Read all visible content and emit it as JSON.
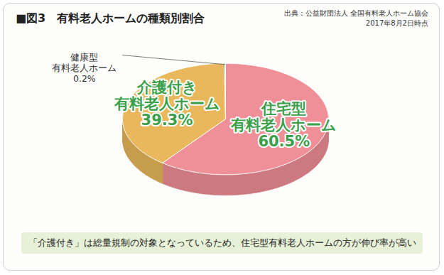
{
  "chart_data": {
    "type": "pie",
    "title": "■図3　有料老人ホームの種類別割合",
    "source": "出典：公益財団法人 全国有料老人ホーム協会",
    "source_date": "2017年8月2日時点",
    "caption": "「介護付き」は総量規制の対象となっているため、住宅型有料老人ホームの方が伸び率が高い",
    "categories": [
      "住宅型\n有料老人ホーム",
      "介護付き\n有料老人ホーム",
      "健康型\n有料老人ホーム"
    ],
    "values": [
      60.5,
      39.3,
      0.2
    ],
    "value_labels": [
      "60.5%",
      "39.3%",
      "0.2%"
    ],
    "colors": [
      "#ef8f98",
      "#e9b85c",
      "#6cb9c2"
    ],
    "data_labels": true
  }
}
